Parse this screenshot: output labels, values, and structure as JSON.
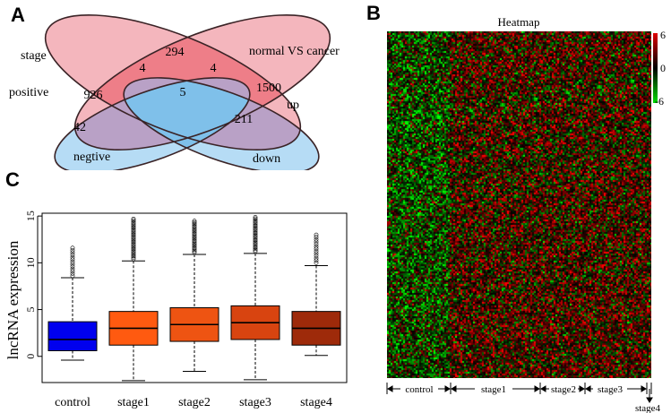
{
  "panels": {
    "a": "A",
    "b": "B",
    "c": "C"
  },
  "venn": {
    "set_labels": {
      "stage": "stage",
      "positive": "positive",
      "normal_vs_cancer": "normal VS cancer",
      "up": "up",
      "negtive": "negtive",
      "down": "down"
    },
    "counts": {
      "stage_positive_only": "926",
      "normal_up_only": "1500",
      "positive_and_up": "294",
      "positive_up_negtive": "4",
      "positive_up_down": "4",
      "all_center": "5",
      "negtive_only": "42",
      "down_only": "211"
    },
    "colors": {
      "positive_fill": "#f4b6bd",
      "negtive_fill": "#b6dcf5",
      "overlap_fill": "#ee7e88",
      "purple_fill": "#b9a1c6",
      "center_fill": "#7fc0ea"
    }
  },
  "heatmap": {
    "title": "Heatmap",
    "scale": {
      "max": "6",
      "mid": "0",
      "min": "-6"
    },
    "groups": {
      "control": "control",
      "stage1": "stage1",
      "stage2": "stage2",
      "stage3": "stage3",
      "stage4": "stage4"
    },
    "colors": {
      "high": "#e00000",
      "mid": "#000000",
      "low": "#00dd00"
    }
  },
  "chart_data": {
    "type": "box",
    "title": "",
    "ylabel": "lncRNA expression",
    "xlabel": "",
    "ylim": [
      -2.8,
      15.3
    ],
    "yticks": [
      0,
      5,
      10,
      15
    ],
    "categories": [
      "control",
      "stage1",
      "stage2",
      "stage3",
      "stage4"
    ],
    "boxes": [
      {
        "name": "control",
        "whisker_low": -0.4,
        "q1": 0.6,
        "median": 1.8,
        "q3": 3.7,
        "whisker_high": 8.4,
        "outliers_from": 8.6,
        "outliers_to": 11.8,
        "color": "#0000ee"
      },
      {
        "name": "stage1",
        "whisker_low": -2.6,
        "q1": 1.2,
        "median": 3.0,
        "q3": 4.8,
        "whisker_high": 10.2,
        "outliers_from": 10.4,
        "outliers_to": 14.8,
        "color": "#ff5a10"
      },
      {
        "name": "stage2",
        "whisker_low": -1.6,
        "q1": 1.6,
        "median": 3.4,
        "q3": 5.2,
        "whisker_high": 10.9,
        "outliers_from": 11.1,
        "outliers_to": 14.5,
        "color": "#ee5412"
      },
      {
        "name": "stage3",
        "whisker_low": -2.5,
        "q1": 1.8,
        "median": 3.6,
        "q3": 5.4,
        "whisker_high": 11.0,
        "outliers_from": 11.2,
        "outliers_to": 14.9,
        "color": "#d84410"
      },
      {
        "name": "stage4",
        "whisker_low": 0.1,
        "q1": 1.2,
        "median": 3.0,
        "q3": 4.8,
        "whisker_high": 9.7,
        "outliers_from": 10.0,
        "outliers_to": 13.1,
        "color": "#9e2a0a"
      }
    ]
  }
}
